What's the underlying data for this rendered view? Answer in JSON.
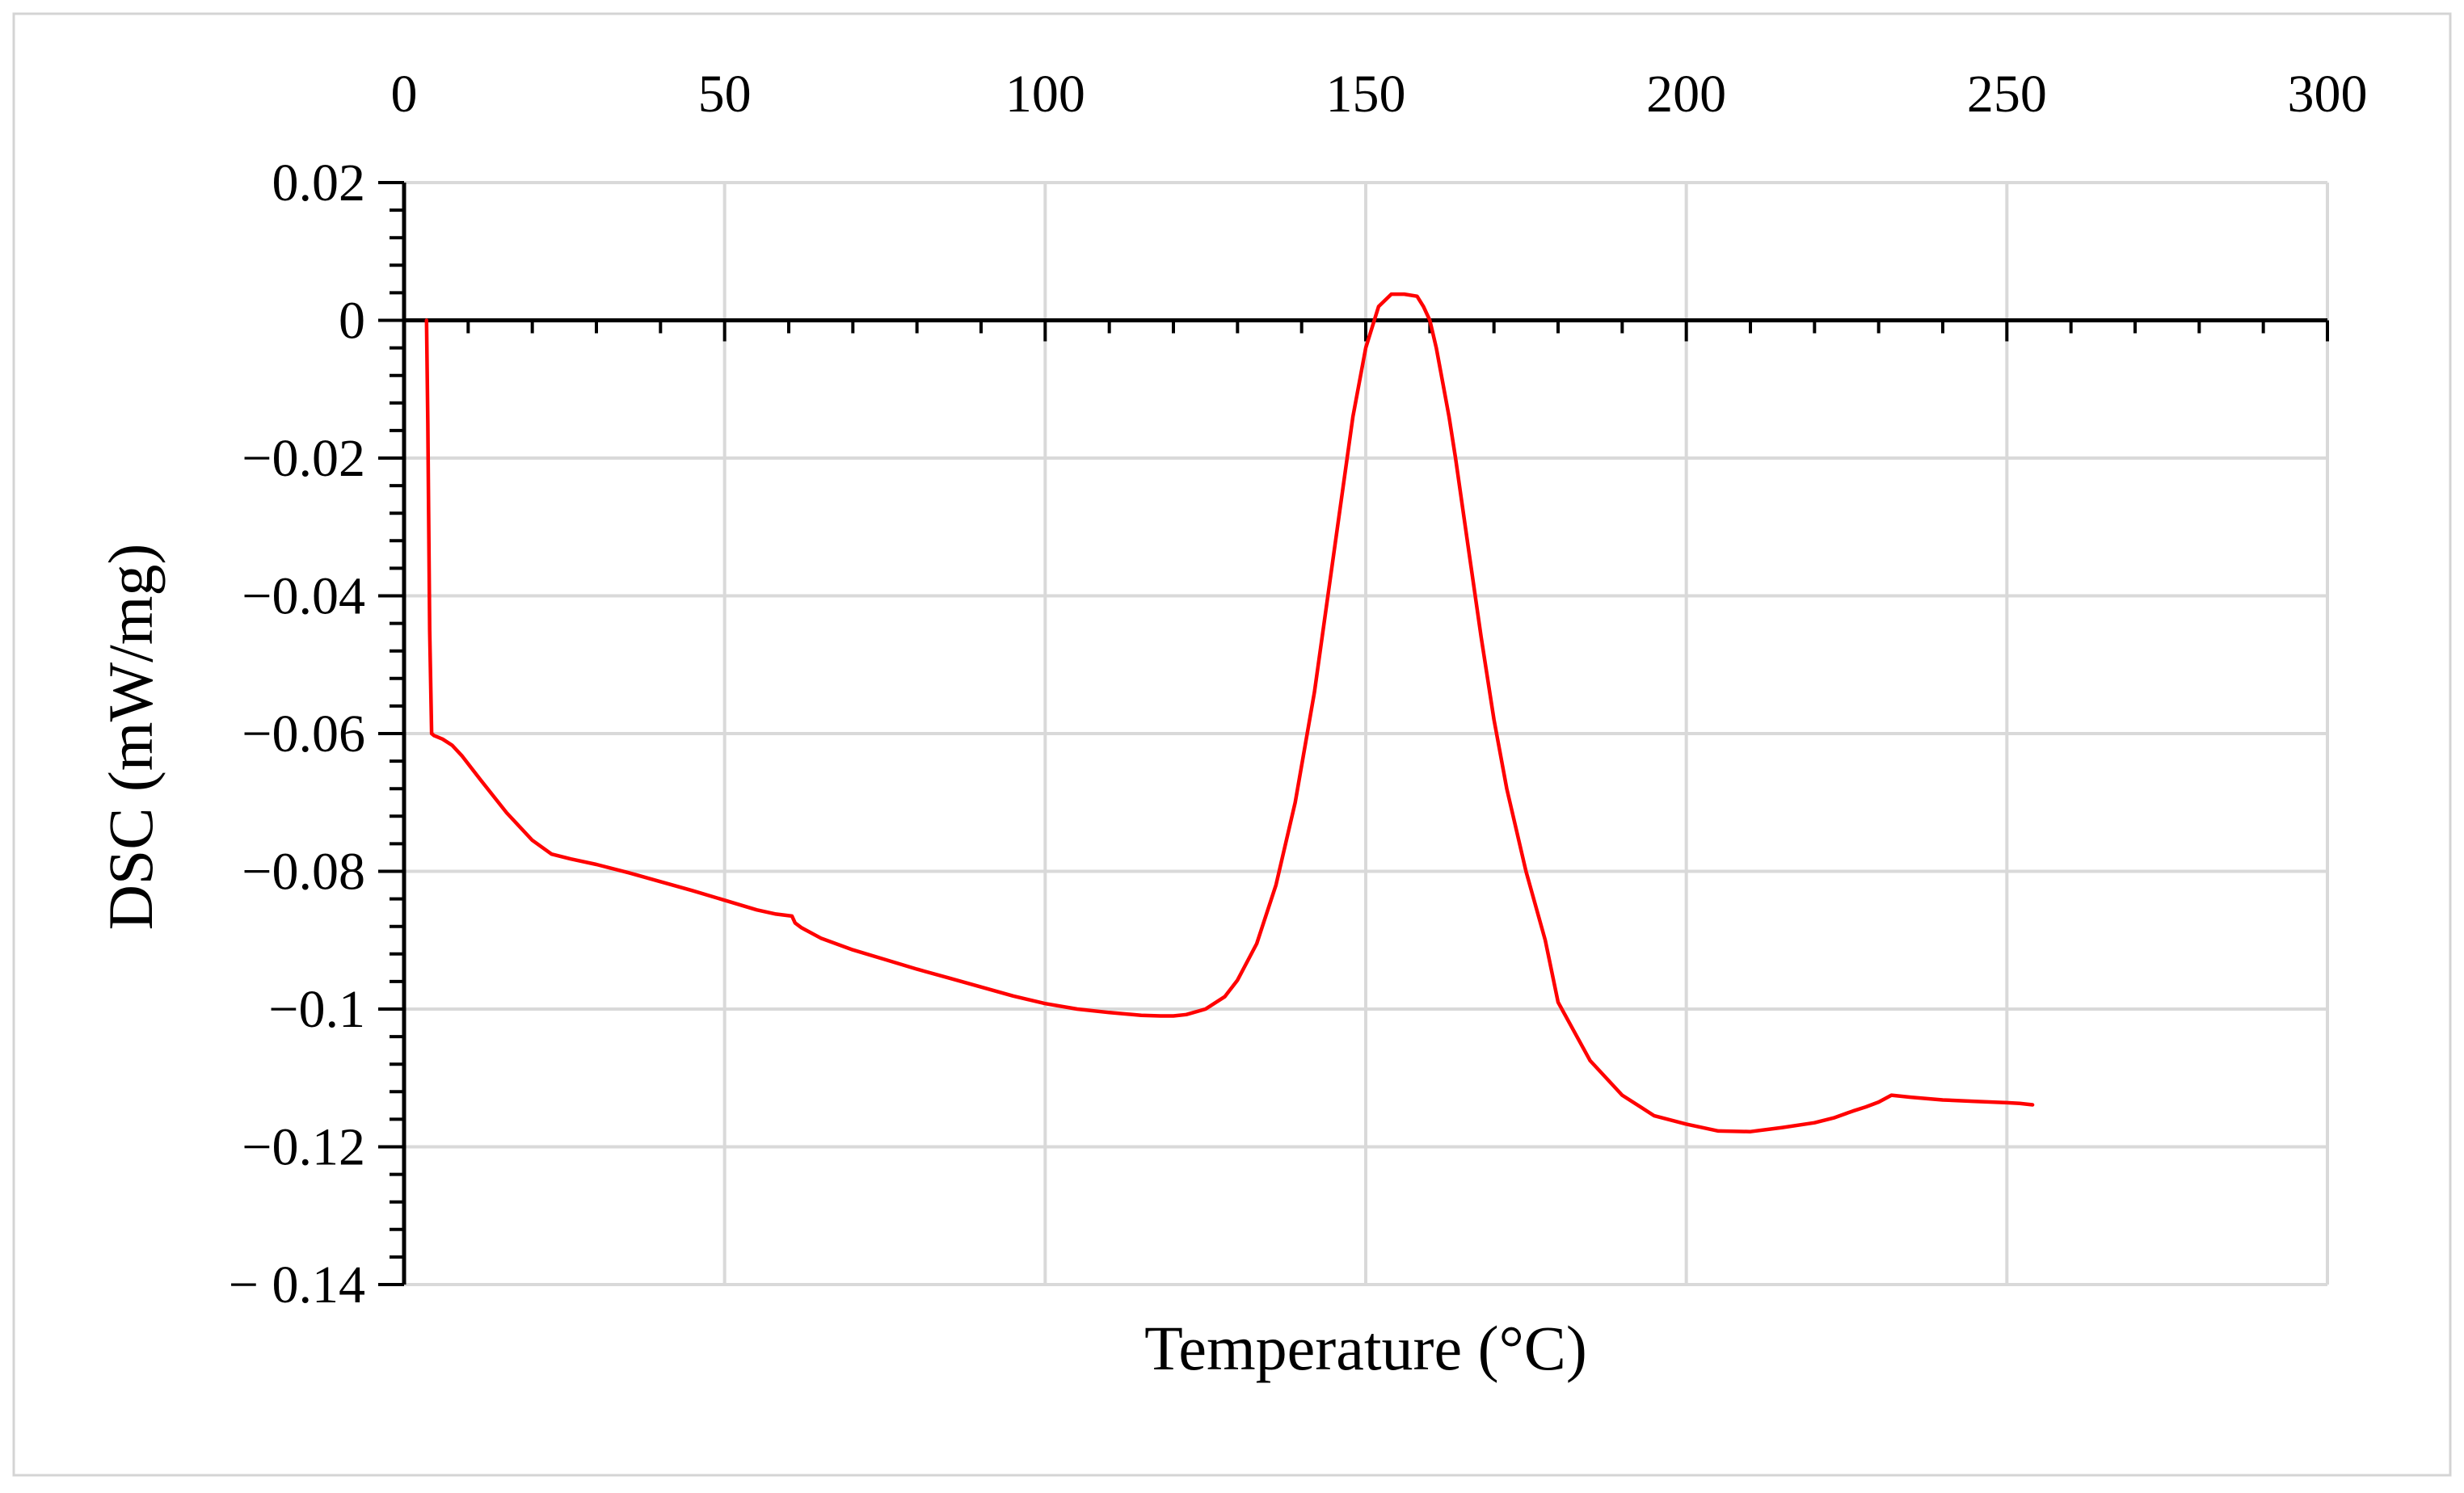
{
  "chart_data": {
    "type": "line",
    "title": "",
    "xlabel": "Temperature (°C)",
    "ylabel": "DSC (mW/mg)",
    "xlim": [
      0,
      300
    ],
    "ylim": [
      -0.14,
      0.02
    ],
    "x_major_step": 50,
    "y_major_step": 0.02,
    "x_tick_labels": [
      "0",
      "50",
      "100",
      "150",
      "200",
      "250",
      "300"
    ],
    "y_tick_labels": [
      "0.02",
      "0",
      "−0.02",
      "−0.04",
      "−0.06",
      "−0.08",
      "−0.1",
      "−0.12",
      "− 0.14"
    ],
    "x_axis_position": "top",
    "grid": true,
    "legend": "none",
    "series": [
      {
        "name": "DSC",
        "color": "#ff0000",
        "x": [
          3.5,
          3.7,
          4,
          4.3,
          4.7,
          6,
          7.5,
          9,
          12,
          16,
          20,
          23,
          26,
          30,
          35,
          40,
          45,
          50,
          55,
          58,
          60.5,
          61,
          62,
          65,
          70,
          75,
          80,
          85,
          90,
          95,
          100,
          105,
          110,
          115,
          118,
          120,
          122,
          125,
          128,
          130,
          133,
          136,
          139,
          142,
          145,
          148,
          150,
          152,
          154,
          156,
          158,
          159,
          160,
          161,
          162,
          163,
          164,
          166,
          168,
          170,
          172,
          175,
          178,
          180,
          185,
          190,
          195,
          200,
          205,
          210,
          215,
          220,
          223,
          226,
          228,
          230,
          232,
          235,
          240,
          245,
          250,
          252,
          253,
          254
        ],
        "y": [
          0,
          -0.015,
          -0.045,
          -0.06,
          -0.0603,
          -0.0608,
          -0.0617,
          -0.0632,
          -0.0668,
          -0.0715,
          -0.0755,
          -0.0775,
          -0.0782,
          -0.079,
          -0.0802,
          -0.0815,
          -0.0828,
          -0.0842,
          -0.0856,
          -0.0862,
          -0.0865,
          -0.0875,
          -0.0882,
          -0.0897,
          -0.0914,
          -0.0928,
          -0.0942,
          -0.0955,
          -0.0968,
          -0.0981,
          -0.0992,
          -0.1,
          -0.1005,
          -0.1009,
          -0.101,
          -0.101,
          -0.1008,
          -0.1,
          -0.0982,
          -0.0958,
          -0.0905,
          -0.082,
          -0.07,
          -0.054,
          -0.034,
          -0.014,
          -0.004,
          0.002,
          0.0038,
          0.0038,
          0.0035,
          0.002,
          0.0,
          -0.004,
          -0.009,
          -0.014,
          -0.02,
          -0.033,
          -0.046,
          -0.058,
          -0.068,
          -0.08,
          -0.09,
          -0.099,
          -0.1075,
          -0.1125,
          -0.1155,
          -0.1167,
          -0.1177,
          -0.1178,
          -0.1172,
          -0.1165,
          -0.1158,
          -0.1148,
          -0.1142,
          -0.1135,
          -0.1125,
          -0.1128,
          -0.1132,
          -0.1134,
          -0.1136,
          -0.1137,
          -0.1138,
          -0.1139
        ]
      }
    ]
  }
}
